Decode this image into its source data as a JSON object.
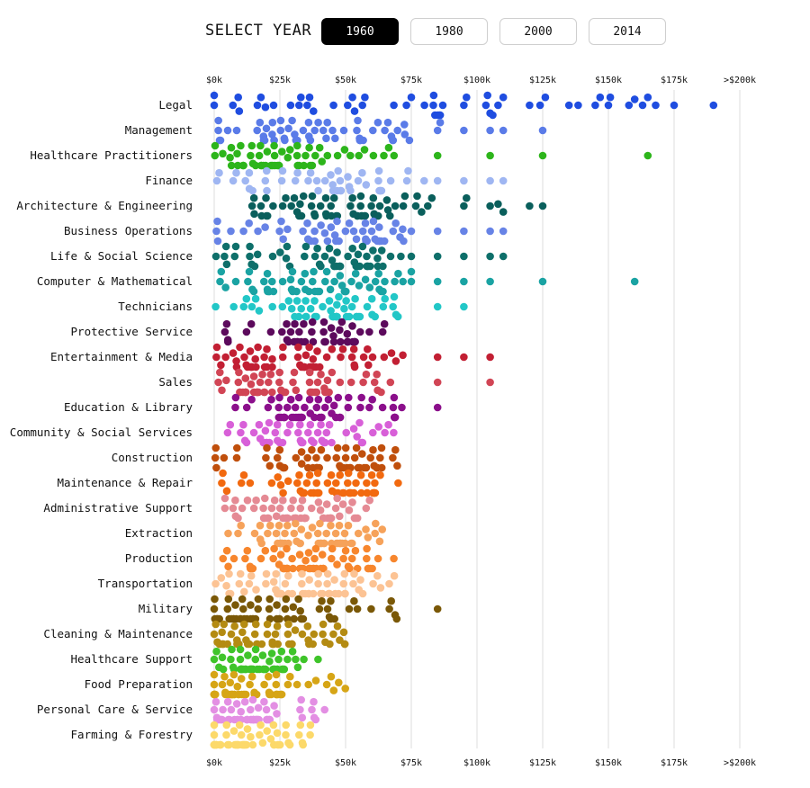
{
  "controls": {
    "label": "SELECT YEAR",
    "years": [
      "1960",
      "1980",
      "2000",
      "2014"
    ],
    "selected": "1960"
  },
  "chart_data": {
    "type": "scatter",
    "subtype": "beeswarm",
    "x_axis": {
      "ticks": [
        "$0k",
        "$25k",
        "$50k",
        "$75k",
        "$100k",
        "$125k",
        "$150k",
        "$175k",
        ">$200k"
      ],
      "tick_values": [
        0,
        25000,
        50000,
        75000,
        100000,
        125000,
        150000,
        175000,
        200000
      ],
      "range": [
        0,
        200000
      ],
      "grid": true,
      "position": "top-and-bottom"
    },
    "categories": [
      {
        "name": "Legal",
        "color": "#1f4de0",
        "dots": 32,
        "min": 0,
        "max": 190000,
        "peak": 55000,
        "spread": 0.3,
        "tail": [
          75000,
          80000,
          84000,
          85000,
          86000,
          87000,
          95000,
          96000,
          104000,
          105000,
          106000,
          108000,
          110000,
          120000,
          124000,
          126000,
          135000,
          145000,
          150000,
          160000,
          163000,
          165000,
          175000,
          190000
        ]
      },
      {
        "name": "Management",
        "color": "#5a7be8",
        "dots": 55,
        "min": 0,
        "max": 75000,
        "peak": 40000,
        "spread": 0.6,
        "tail": [
          85000,
          86000,
          95000,
          105000,
          110000,
          125000
        ]
      },
      {
        "name": "Healthcare Practitioners",
        "color": "#2db51b",
        "dots": 55,
        "min": 0,
        "max": 70000,
        "peak": 25000,
        "spread": 0.5,
        "tail": [
          85000,
          105000,
          125000,
          165000
        ]
      },
      {
        "name": "Finance",
        "color": "#9fb6f2",
        "dots": 45,
        "min": 0,
        "max": 80000,
        "peak": 50000,
        "spread": 0.4,
        "tail": [
          85000,
          95000,
          105000,
          110000
        ]
      },
      {
        "name": "Architecture & Engineering",
        "color": "#0a5f5c",
        "dots": 60,
        "min": 5000,
        "max": 87000,
        "peak": 52000,
        "spread": 0.45,
        "tail": [
          95000,
          96000,
          105000,
          108000,
          110000,
          120000,
          125000
        ]
      },
      {
        "name": "Business Operations",
        "color": "#6783e6",
        "dots": 50,
        "min": 0,
        "max": 75000,
        "peak": 50000,
        "spread": 0.45,
        "tail": [
          85000,
          95000,
          105000,
          110000
        ]
      },
      {
        "name": "Life & Social Science",
        "color": "#0e6f6a",
        "dots": 55,
        "min": 0,
        "max": 75000,
        "peak": 50000,
        "spread": 0.5,
        "tail": [
          85000,
          95000,
          105000,
          110000
        ]
      },
      {
        "name": "Computer & Mathematical",
        "color": "#1aa3a3",
        "dots": 55,
        "min": 0,
        "max": 75000,
        "peak": 50000,
        "spread": 0.5,
        "tail": [
          85000,
          95000,
          105000,
          125000,
          160000
        ]
      },
      {
        "name": "Technicians",
        "color": "#22c7c7",
        "dots": 55,
        "min": 0,
        "max": 75000,
        "peak": 50000,
        "spread": 0.35,
        "tail": [
          85000,
          95000
        ]
      },
      {
        "name": "Protective Service",
        "color": "#5c0a5c",
        "dots": 50,
        "min": 0,
        "max": 70000,
        "peak": 40000,
        "spread": 0.35,
        "tail": []
      },
      {
        "name": "Entertainment & Media",
        "color": "#c21f33",
        "dots": 60,
        "min": 0,
        "max": 75000,
        "peak": 30000,
        "spread": 0.55,
        "tail": [
          85000,
          95000,
          105000
        ]
      },
      {
        "name": "Sales",
        "color": "#d14555",
        "dots": 60,
        "min": 0,
        "max": 70000,
        "peak": 25000,
        "spread": 0.5,
        "tail": [
          85000,
          105000
        ]
      },
      {
        "name": "Education & Library",
        "color": "#8b0f8b",
        "dots": 55,
        "min": 0,
        "max": 75000,
        "peak": 35000,
        "spread": 0.45,
        "tail": [
          85000
        ]
      },
      {
        "name": "Community & Social Services",
        "color": "#d860d8",
        "dots": 50,
        "min": 0,
        "max": 70000,
        "peak": 30000,
        "spread": 0.45,
        "tail": []
      },
      {
        "name": "Construction",
        "color": "#c04f0c",
        "dots": 60,
        "min": 0,
        "max": 70000,
        "peak": 45000,
        "spread": 0.4,
        "tail": []
      },
      {
        "name": "Maintenance & Repair",
        "color": "#f2690f",
        "dots": 60,
        "min": 0,
        "max": 70000,
        "peak": 45000,
        "spread": 0.4,
        "tail": []
      },
      {
        "name": "Administrative Support",
        "color": "#e58a94",
        "dots": 60,
        "min": 0,
        "max": 60000,
        "peak": 30000,
        "spread": 0.4,
        "tail": []
      },
      {
        "name": "Extraction",
        "color": "#f6a25a",
        "dots": 60,
        "min": 0,
        "max": 65000,
        "peak": 40000,
        "spread": 0.45,
        "tail": []
      },
      {
        "name": "Production",
        "color": "#f7862d",
        "dots": 60,
        "min": 0,
        "max": 70000,
        "peak": 35000,
        "spread": 0.45,
        "tail": []
      },
      {
        "name": "Transportation",
        "color": "#fcc394",
        "dots": 60,
        "min": 0,
        "max": 70000,
        "peak": 35000,
        "spread": 0.45,
        "tail": []
      },
      {
        "name": "Military",
        "color": "#7a5807",
        "dots": 60,
        "min": 0,
        "max": 70000,
        "peak": 15000,
        "spread": 0.4,
        "tail": [
          85000
        ]
      },
      {
        "name": "Cleaning & Maintenance",
        "color": "#b48b12",
        "dots": 60,
        "min": 0,
        "max": 50000,
        "peak": 15000,
        "spread": 0.45,
        "tail": []
      },
      {
        "name": "Healthcare Support",
        "color": "#3fc42a",
        "dots": 60,
        "min": 0,
        "max": 40000,
        "peak": 15000,
        "spread": 0.45,
        "tail": []
      },
      {
        "name": "Food Preparation",
        "color": "#d6a516",
        "dots": 60,
        "min": 0,
        "max": 50000,
        "peak": 10000,
        "spread": 0.45,
        "tail": []
      },
      {
        "name": "Personal Care & Service",
        "color": "#e38fe3",
        "dots": 60,
        "min": 0,
        "max": 45000,
        "peak": 10000,
        "spread": 0.45,
        "tail": []
      },
      {
        "name": "Farming & Forestry",
        "color": "#fcd96a",
        "dots": 60,
        "min": 0,
        "max": 40000,
        "peak": 5000,
        "spread": 0.5,
        "tail": []
      }
    ]
  }
}
